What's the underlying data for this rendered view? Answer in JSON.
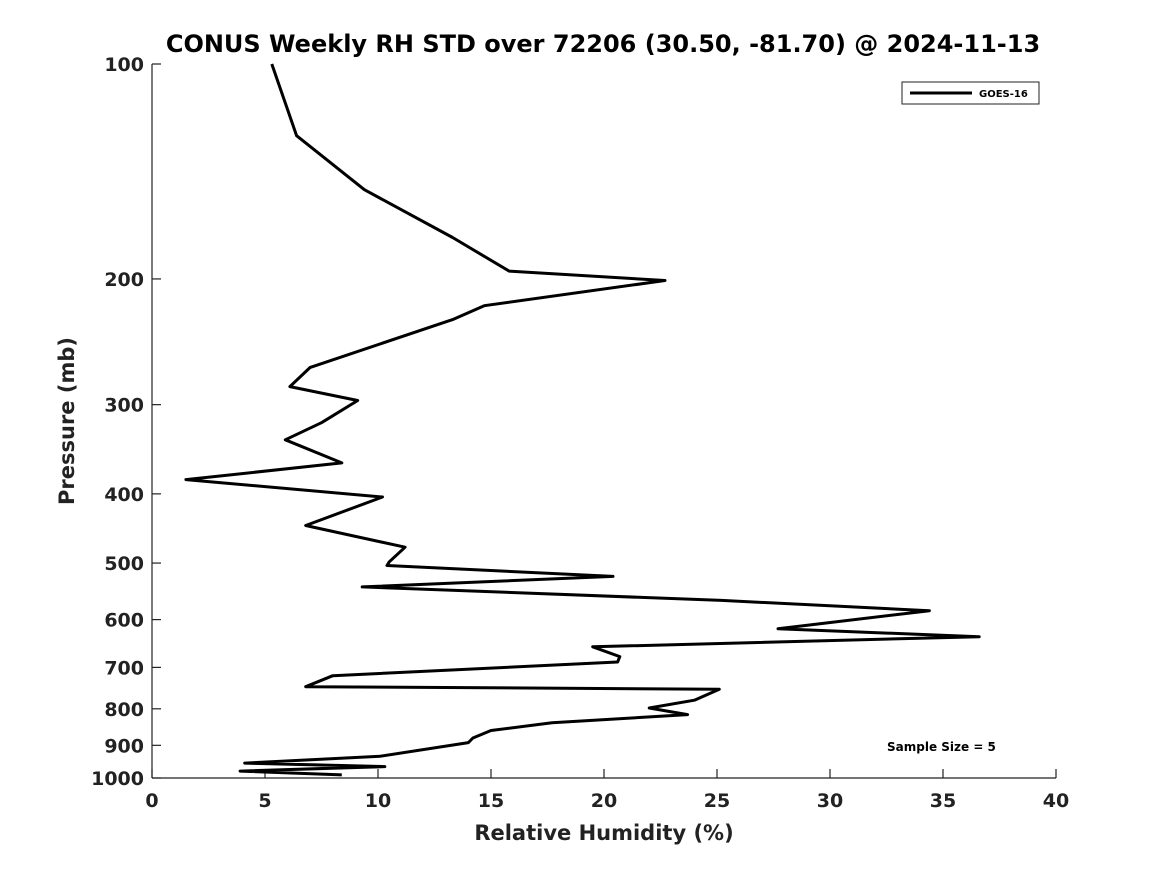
{
  "chart_data": {
    "type": "line",
    "title": "CONUS Weekly RH STD over 72206 (30.50, -81.70) @ 2024-11-13",
    "xlabel": "Relative Humidity (%)",
    "ylabel": "Pressure (mb)",
    "xlim": [
      0,
      40
    ],
    "ylim": [
      1000,
      100
    ],
    "yscale": "log",
    "y_reversed": true,
    "grid": false,
    "xticks": [
      "0",
      "5",
      "10",
      "15",
      "20",
      "25",
      "30",
      "35",
      "40"
    ],
    "yticks": [
      "100",
      "200",
      "300",
      "400",
      "500",
      "600",
      "700",
      "800",
      "900",
      "1000"
    ],
    "legend_position": "top-right",
    "annotation": "Sample Size = 5",
    "series": [
      {
        "name": "GOES-16",
        "color": "#000000",
        "points": [
          [
            5.3,
            100
          ],
          [
            6.4,
            126
          ],
          [
            9.4,
            150
          ],
          [
            13.3,
            175
          ],
          [
            15.8,
            195
          ],
          [
            22.7,
            201
          ],
          [
            14.7,
            218
          ],
          [
            13.3,
            228
          ],
          [
            7.0,
            266
          ],
          [
            6.1,
            283
          ],
          [
            9.1,
            296
          ],
          [
            7.5,
            318
          ],
          [
            5.9,
            336
          ],
          [
            8.4,
            362
          ],
          [
            1.5,
            382
          ],
          [
            10.2,
            404
          ],
          [
            6.8,
            443
          ],
          [
            11.2,
            475
          ],
          [
            10.5,
            498
          ],
          [
            10.4,
            504
          ],
          [
            20.4,
            522
          ],
          [
            9.3,
            540
          ],
          [
            25.2,
            564
          ],
          [
            34.4,
            583
          ],
          [
            27.7,
            618
          ],
          [
            36.6,
            634
          ],
          [
            19.5,
            655
          ],
          [
            20.7,
            676
          ],
          [
            20.6,
            688
          ],
          [
            8.0,
            719
          ],
          [
            6.8,
            745
          ],
          [
            25.1,
            751
          ],
          [
            24.0,
            778
          ],
          [
            22.0,
            798
          ],
          [
            23.7,
            815
          ],
          [
            17.7,
            837
          ],
          [
            15.0,
            858
          ],
          [
            14.2,
            879
          ],
          [
            14.0,
            892
          ],
          [
            10.1,
            932
          ],
          [
            4.1,
            953
          ],
          [
            10.3,
            964
          ],
          [
            3.9,
            978
          ],
          [
            8.4,
            990
          ]
        ]
      }
    ]
  }
}
